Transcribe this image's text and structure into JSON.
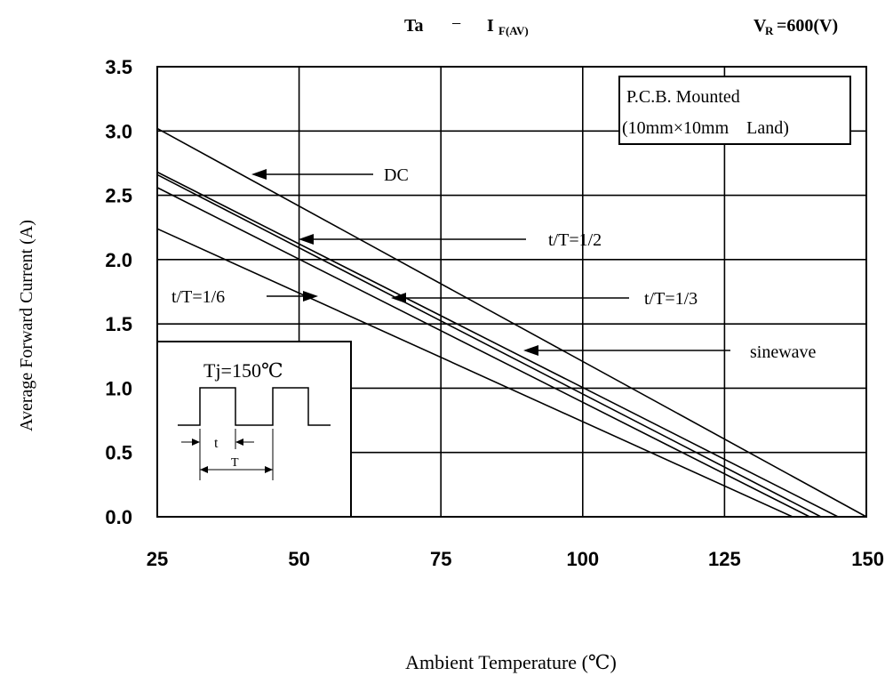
{
  "header": {
    "title_main": "Ta",
    "title_dash": "−",
    "title_var": "I",
    "title_sub": "F(AV)",
    "condition_main": "V",
    "condition_sub": "R",
    "condition_value": "=600(V)"
  },
  "chart_data": {
    "type": "line",
    "title": "Ta − IF(AV)",
    "xlabel": "Ambient Temperature (℃)",
    "ylabel": "Average Forward Current (A)",
    "xlim": [
      25,
      150
    ],
    "ylim": [
      0,
      3.5
    ],
    "x_ticks": [
      "25",
      "50",
      "75",
      "100",
      "125",
      "150"
    ],
    "y_ticks": [
      "0.0",
      "0.5",
      "1.0",
      "1.5",
      "2.0",
      "2.5",
      "3.0",
      "3.5"
    ],
    "grid": true,
    "series": [
      {
        "name": "DC",
        "x": [
          25,
          150
        ],
        "y": [
          3.02,
          0.0
        ],
        "label_x": 45,
        "label_y": 2.7
      },
      {
        "name": "t/T=1/2",
        "x": [
          25,
          145
        ],
        "y": [
          2.68,
          0.0
        ],
        "label_x": 60,
        "label_y": 2.15
      },
      {
        "name": "sinewave",
        "x": [
          25,
          142
        ],
        "y": [
          2.66,
          0.0
        ],
        "label_x": 110,
        "label_y": 1.3
      },
      {
        "name": "t/T=1/3",
        "x": [
          25,
          140
        ],
        "y": [
          2.56,
          0.0
        ],
        "label_x": 90,
        "label_y": 1.7
      },
      {
        "name": "t/T=1/6",
        "x": [
          25,
          137
        ],
        "y": [
          2.24,
          0.0
        ],
        "label_x": 25,
        "label_y": 1.7
      }
    ],
    "annotations": {
      "mount_box_line1": "P.C.B. Mounted",
      "mount_box_line2": "(10mm×10mm　Land)",
      "inset_title": "Tj=150℃",
      "inset_t": "t",
      "inset_T": "T"
    }
  }
}
